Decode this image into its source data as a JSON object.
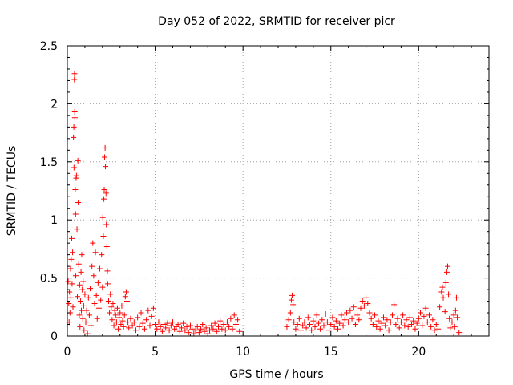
{
  "chart_data": {
    "type": "scatter",
    "title": "Day 052 of 2022, SRMTID for receiver picr",
    "xlabel": "GPS time / hours",
    "ylabel": "SRMTID / TECUs",
    "xlim": [
      0,
      24
    ],
    "ylim": [
      0,
      2.5
    ],
    "xticks": [
      "0",
      "5",
      "10",
      "15",
      "20"
    ],
    "yticks": [
      "0",
      "0.5",
      "1",
      "1.5",
      "2",
      "2.5"
    ],
    "grid": true,
    "marker": "+",
    "color": "#ff0000",
    "series": [
      {
        "name": "SRMTID",
        "points": [
          [
            0.05,
            0.47
          ],
          [
            0.08,
            0.28
          ],
          [
            0.1,
            0.12
          ],
          [
            0.12,
            0.38
          ],
          [
            0.15,
            0.2
          ],
          [
            0.18,
            0.58
          ],
          [
            0.2,
            0.33
          ],
          [
            0.22,
            0.66
          ],
          [
            0.25,
            0.84
          ],
          [
            0.27,
            0.45
          ],
          [
            0.3,
            0.72
          ],
          [
            0.32,
            0.25
          ],
          [
            0.35,
            1.71
          ],
          [
            0.37,
            1.8
          ],
          [
            0.38,
            1.45
          ],
          [
            0.4,
            2.21
          ],
          [
            0.41,
            2.26
          ],
          [
            0.42,
            1.93
          ],
          [
            0.43,
            1.88
          ],
          [
            0.45,
            1.26
          ],
          [
            0.47,
            1.05
          ],
          [
            0.48,
            0.52
          ],
          [
            0.5,
            1.36
          ],
          [
            0.52,
            1.38
          ],
          [
            0.55,
            0.92
          ],
          [
            0.57,
            0.34
          ],
          [
            0.6,
            1.51
          ],
          [
            0.62,
            1.15
          ],
          [
            0.65,
            0.62
          ],
          [
            0.68,
            0.18
          ],
          [
            0.7,
            0.44
          ],
          [
            0.72,
            0.08
          ],
          [
            0.75,
            0.3
          ],
          [
            0.78,
            0.55
          ],
          [
            0.8,
            0.22
          ],
          [
            0.82,
            0.7
          ],
          [
            0.85,
            0.4
          ],
          [
            0.88,
            0.15
          ],
          [
            0.9,
            0.47
          ],
          [
            0.93,
            0.26
          ],
          [
            0.95,
            0.05
          ],
          [
            1.0,
            0.36
          ],
          [
            1.05,
            0.12
          ],
          [
            1.1,
            0.22
          ],
          [
            1.15,
            0.02
          ],
          [
            1.2,
            0.33
          ],
          [
            1.25,
            0.18
          ],
          [
            1.3,
            0.41
          ],
          [
            1.35,
            0.09
          ],
          [
            1.4,
            0.6
          ],
          [
            1.45,
            0.8
          ],
          [
            1.5,
            0.52
          ],
          [
            1.55,
            0.28
          ],
          [
            1.6,
            0.72
          ],
          [
            1.65,
            0.35
          ],
          [
            1.7,
            0.15
          ],
          [
            1.75,
            0.46
          ],
          [
            1.8,
            0.24
          ],
          [
            1.85,
            0.58
          ],
          [
            1.9,
            0.31
          ],
          [
            1.95,
            0.7
          ],
          [
            2.0,
            0.42
          ],
          [
            2.02,
            1.02
          ],
          [
            2.05,
            0.86
          ],
          [
            2.08,
            1.18
          ],
          [
            2.1,
            1.26
          ],
          [
            2.12,
            1.54
          ],
          [
            2.15,
            1.62
          ],
          [
            2.17,
            1.46
          ],
          [
            2.2,
            1.23
          ],
          [
            2.22,
            0.96
          ],
          [
            2.25,
            0.77
          ],
          [
            2.28,
            0.56
          ],
          [
            2.3,
            0.45
          ],
          [
            2.35,
            0.3
          ],
          [
            2.4,
            0.2
          ],
          [
            2.45,
            0.36
          ],
          [
            2.5,
            0.25
          ],
          [
            2.55,
            0.14
          ],
          [
            2.6,
            0.28
          ],
          [
            2.65,
            0.09
          ],
          [
            2.7,
            0.22
          ],
          [
            2.75,
            0.18
          ],
          [
            2.8,
            0.12
          ],
          [
            2.85,
            0.24
          ],
          [
            2.9,
            0.06
          ],
          [
            2.95,
            0.16
          ],
          [
            3.0,
            0.2
          ],
          [
            3.05,
            0.1
          ],
          [
            3.1,
            0.26
          ],
          [
            3.15,
            0.13
          ],
          [
            3.2,
            0.08
          ],
          [
            3.25,
            0.18
          ],
          [
            3.3,
            0.34
          ],
          [
            3.35,
            0.38
          ],
          [
            3.4,
            0.3
          ],
          [
            3.45,
            0.12
          ],
          [
            3.5,
            0.07
          ],
          [
            3.6,
            0.15
          ],
          [
            3.7,
            0.09
          ],
          [
            3.8,
            0.12
          ],
          [
            3.9,
            0.05
          ],
          [
            4.0,
            0.16
          ],
          [
            4.1,
            0.08
          ],
          [
            4.2,
            0.2
          ],
          [
            4.3,
            0.11
          ],
          [
            4.4,
            0.06
          ],
          [
            4.5,
            0.14
          ],
          [
            4.6,
            0.22
          ],
          [
            4.7,
            0.09
          ],
          [
            4.8,
            0.17
          ],
          [
            4.9,
            0.24
          ],
          [
            5.0,
            0.1
          ],
          [
            5.1,
            0.06
          ],
          [
            5.2,
            0.12
          ],
          [
            5.3,
            0.08
          ],
          [
            5.4,
            0.04
          ],
          [
            5.5,
            0.1
          ],
          [
            5.6,
            0.07
          ],
          [
            5.7,
            0.11
          ],
          [
            5.8,
            0.05
          ],
          [
            5.9,
            0.09
          ],
          [
            6.0,
            0.12
          ],
          [
            6.1,
            0.06
          ],
          [
            6.2,
            0.08
          ],
          [
            6.3,
            0.1
          ],
          [
            6.4,
            0.04
          ],
          [
            6.5,
            0.07
          ],
          [
            6.6,
            0.11
          ],
          [
            6.7,
            0.05
          ],
          [
            6.8,
            0.08
          ],
          [
            6.9,
            0.03
          ],
          [
            7.0,
            0.09
          ],
          [
            7.1,
            0.06
          ],
          [
            7.2,
            0.02
          ],
          [
            7.3,
            0.05
          ],
          [
            7.4,
            0.08
          ],
          [
            7.5,
            0.03
          ],
          [
            7.6,
            0.06
          ],
          [
            7.7,
            0.1
          ],
          [
            7.8,
            0.04
          ],
          [
            7.9,
            0.07
          ],
          [
            8.0,
            0.02
          ],
          [
            8.1,
            0.05
          ],
          [
            8.2,
            0.09
          ],
          [
            8.3,
            0.06
          ],
          [
            8.4,
            0.11
          ],
          [
            8.5,
            0.04
          ],
          [
            8.6,
            0.08
          ],
          [
            8.7,
            0.13
          ],
          [
            8.8,
            0.06
          ],
          [
            8.9,
            0.1
          ],
          [
            9.0,
            0.05
          ],
          [
            9.1,
            0.12
          ],
          [
            9.2,
            0.08
          ],
          [
            9.3,
            0.15
          ],
          [
            9.4,
            0.06
          ],
          [
            9.5,
            0.18
          ],
          [
            9.6,
            0.1
          ],
          [
            9.7,
            0.14
          ],
          [
            9.8,
            0.04
          ],
          [
            12.5,
            0.08
          ],
          [
            12.6,
            0.14
          ],
          [
            12.7,
            0.2
          ],
          [
            12.75,
            0.31
          ],
          [
            12.8,
            0.35
          ],
          [
            12.85,
            0.27
          ],
          [
            12.9,
            0.12
          ],
          [
            13.0,
            0.06
          ],
          [
            13.1,
            0.1
          ],
          [
            13.2,
            0.15
          ],
          [
            13.3,
            0.05
          ],
          [
            13.4,
            0.09
          ],
          [
            13.5,
            0.12
          ],
          [
            13.6,
            0.07
          ],
          [
            13.7,
            0.16
          ],
          [
            13.8,
            0.1
          ],
          [
            13.9,
            0.05
          ],
          [
            14.0,
            0.13
          ],
          [
            14.1,
            0.08
          ],
          [
            14.2,
            0.18
          ],
          [
            14.3,
            0.11
          ],
          [
            14.4,
            0.06
          ],
          [
            14.5,
            0.14
          ],
          [
            14.6,
            0.09
          ],
          [
            14.7,
            0.19
          ],
          [
            14.8,
            0.12
          ],
          [
            14.9,
            0.05
          ],
          [
            15.0,
            0.1
          ],
          [
            15.1,
            0.16
          ],
          [
            15.2,
            0.08
          ],
          [
            15.3,
            0.13
          ],
          [
            15.4,
            0.06
          ],
          [
            15.5,
            0.11
          ],
          [
            15.6,
            0.18
          ],
          [
            15.7,
            0.09
          ],
          [
            15.8,
            0.14
          ],
          [
            15.9,
            0.2
          ],
          [
            16.0,
            0.12
          ],
          [
            16.1,
            0.22
          ],
          [
            16.2,
            0.15
          ],
          [
            16.3,
            0.25
          ],
          [
            16.4,
            0.1
          ],
          [
            16.5,
            0.18
          ],
          [
            16.6,
            0.14
          ],
          [
            16.7,
            0.24
          ],
          [
            16.8,
            0.3
          ],
          [
            16.9,
            0.26
          ],
          [
            17.0,
            0.33
          ],
          [
            17.1,
            0.28
          ],
          [
            17.2,
            0.2
          ],
          [
            17.3,
            0.15
          ],
          [
            17.4,
            0.1
          ],
          [
            17.5,
            0.18
          ],
          [
            17.6,
            0.08
          ],
          [
            17.7,
            0.13
          ],
          [
            17.8,
            0.06
          ],
          [
            17.9,
            0.11
          ],
          [
            18.0,
            0.16
          ],
          [
            18.1,
            0.09
          ],
          [
            18.2,
            0.14
          ],
          [
            18.3,
            0.05
          ],
          [
            18.4,
            0.12
          ],
          [
            18.5,
            0.18
          ],
          [
            18.6,
            0.27
          ],
          [
            18.7,
            0.1
          ],
          [
            18.8,
            0.15
          ],
          [
            18.9,
            0.07
          ],
          [
            19.0,
            0.12
          ],
          [
            19.1,
            0.18
          ],
          [
            19.2,
            0.09
          ],
          [
            19.3,
            0.14
          ],
          [
            19.4,
            0.08
          ],
          [
            19.5,
            0.16
          ],
          [
            19.6,
            0.1
          ],
          [
            19.7,
            0.13
          ],
          [
            19.8,
            0.06
          ],
          [
            19.9,
            0.11
          ],
          [
            20.0,
            0.15
          ],
          [
            20.1,
            0.2
          ],
          [
            20.2,
            0.09
          ],
          [
            20.3,
            0.17
          ],
          [
            20.4,
            0.24
          ],
          [
            20.5,
            0.12
          ],
          [
            20.6,
            0.18
          ],
          [
            20.7,
            0.08
          ],
          [
            20.8,
            0.14
          ],
          [
            20.9,
            0.05
          ],
          [
            21.0,
            0.1
          ],
          [
            21.1,
            0.06
          ],
          [
            21.2,
            0.25
          ],
          [
            21.3,
            0.38
          ],
          [
            21.35,
            0.42
          ],
          [
            21.4,
            0.33
          ],
          [
            21.5,
            0.21
          ],
          [
            21.55,
            0.46
          ],
          [
            21.6,
            0.55
          ],
          [
            21.65,
            0.6
          ],
          [
            21.7,
            0.36
          ],
          [
            21.75,
            0.15
          ],
          [
            21.8,
            0.07
          ],
          [
            21.9,
            0.12
          ],
          [
            22.0,
            0.18
          ],
          [
            22.05,
            0.08
          ],
          [
            22.1,
            0.22
          ],
          [
            22.15,
            0.33
          ],
          [
            22.2,
            0.16
          ],
          [
            22.3,
            0.03
          ]
        ]
      }
    ]
  }
}
